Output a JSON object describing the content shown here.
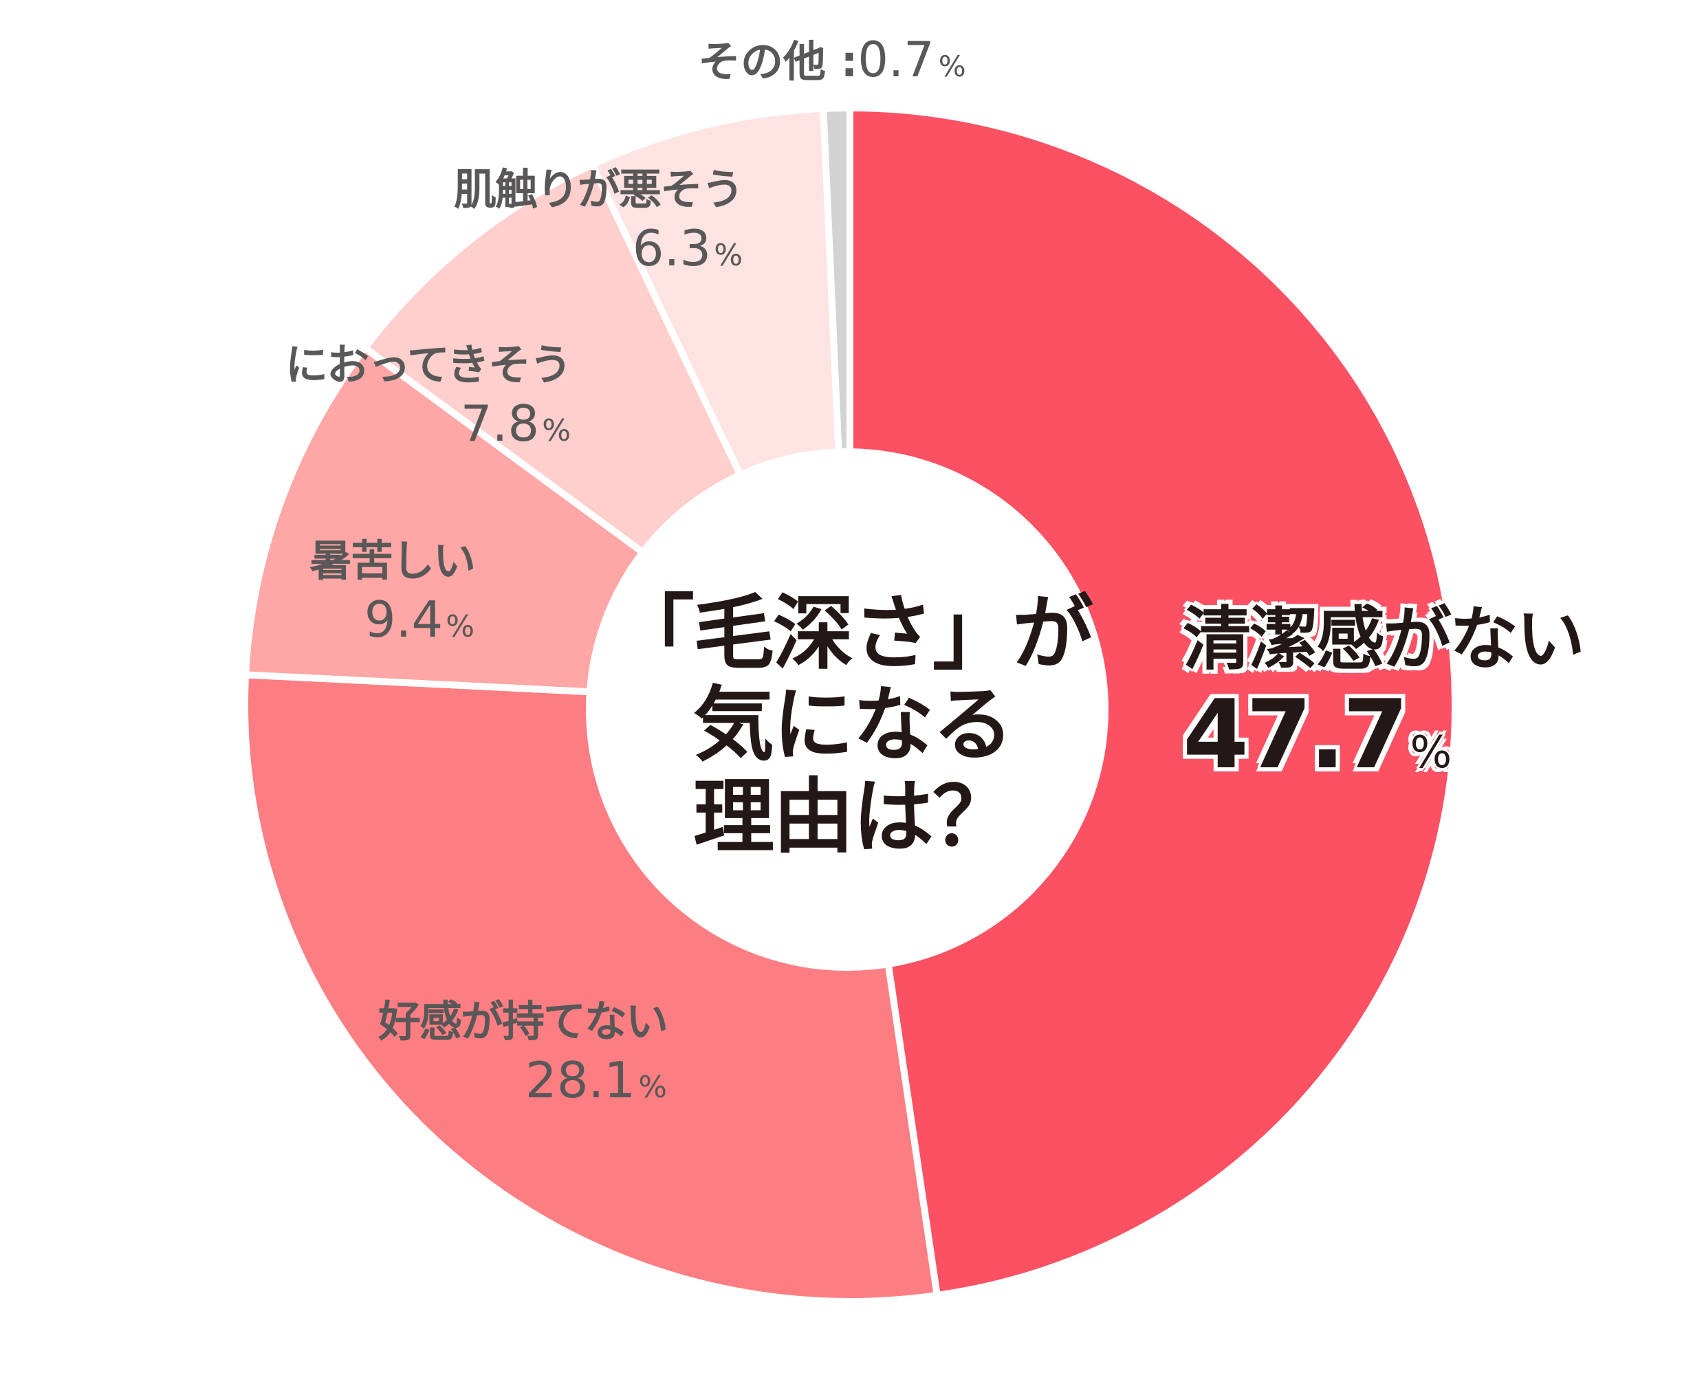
{
  "chart_data": {
    "type": "pie",
    "variant": "donut",
    "title": "「毛深さ」が気になる理由は？",
    "categories": [
      "清潔感がない",
      "好感が持てない",
      "暑苦しい",
      "におってきそう",
      "肌触りが悪そう",
      "その他"
    ],
    "values": [
      47.7,
      28.1,
      9.4,
      7.8,
      6.3,
      0.7
    ],
    "unit": "%",
    "colors": [
      "#fb5163",
      "#fd7e82",
      "#fea7a6",
      "#fecfcd",
      "#fee3e3",
      "#d3d3d3"
    ],
    "start_angle": "12 o'clock",
    "direction": "clockwise",
    "legend": "none (labels on slices)"
  },
  "center": {
    "line1": "「毛深さ」が",
    "line2": "気になる",
    "line3": "理由は？"
  },
  "labels": {
    "s0": {
      "name": "清潔感がない",
      "value": "47.7",
      "pct": "%"
    },
    "s1": {
      "name": "好感が持てない",
      "value": "28.1",
      "pct": "%"
    },
    "s2": {
      "name": "暑苦しい",
      "value": "9.4",
      "pct": "%"
    },
    "s3": {
      "name": "におってきそう",
      "value": "7.8",
      "pct": "%"
    },
    "s4": {
      "name": "肌触りが悪そう",
      "value": "6.3",
      "pct": "%"
    },
    "s5": {
      "name": "その他 :",
      "value": "0.7",
      "pct": "%"
    }
  }
}
